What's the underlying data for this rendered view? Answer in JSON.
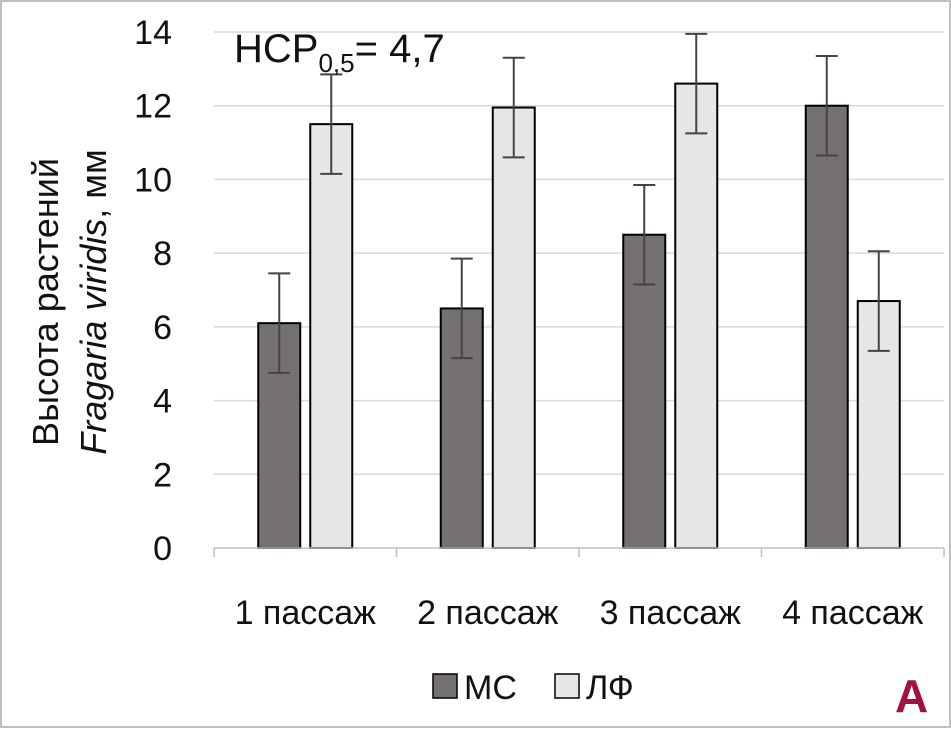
{
  "chart_data": {
    "type": "bar",
    "categories": [
      "1 пассаж",
      "2 пассаж",
      "3 пассаж",
      "4 пассаж"
    ],
    "series": [
      {
        "name": "МС",
        "values": [
          6.1,
          6.5,
          8.5,
          12.0
        ],
        "errors": [
          1.35,
          1.35,
          1.35,
          1.35
        ],
        "color": "#767171"
      },
      {
        "name": "ЛФ",
        "values": [
          11.5,
          11.95,
          12.6,
          6.7
        ],
        "errors": [
          1.35,
          1.35,
          1.35,
          1.35
        ],
        "color": "#e7e6e6"
      }
    ],
    "yticks": [
      "0",
      "2",
      "4",
      "6",
      "8",
      "10",
      "12",
      "14"
    ],
    "ylim": [
      0,
      14
    ],
    "ylabel_line1": "Высота растений",
    "ylabel_line2_italic": "Fragaria viridis",
    "ylabel_line2_rest": ", мм",
    "annotation_main": "НСР",
    "annotation_sub": "0,5",
    "annotation_value": "= 4,7",
    "panel_label": "А",
    "grid": true,
    "legend_position": "bottom"
  }
}
